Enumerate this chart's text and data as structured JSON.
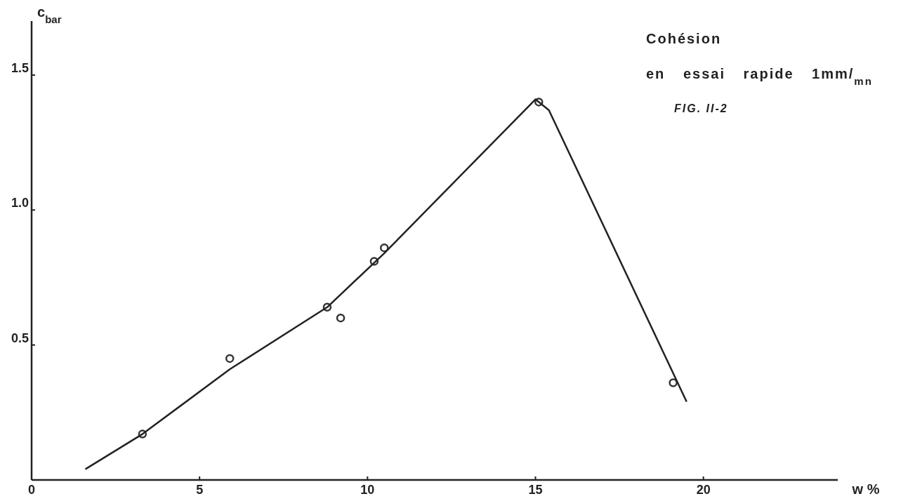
{
  "chart_data": {
    "type": "scatter",
    "title": "Cohésion",
    "subtitle": "en essai rapide 1mm/$_{mn}$",
    "annotations": [
      "FIG. II-2"
    ],
    "xlabel": "w %",
    "ylabel": "c$_{bar}$",
    "xlim": [
      0,
      24
    ],
    "xticks": [
      0,
      5,
      10,
      15,
      20
    ],
    "ylim": [
      0,
      1.7
    ],
    "yticks": [
      {
        "value": 0.5,
        "label": "0.5"
      },
      {
        "value": 1,
        "label": "1.0"
      },
      {
        "value": 1.5,
        "label": "1.5"
      }
    ],
    "grid": false,
    "series": [
      {
        "color": "#333333",
        "marker": "circle",
        "x": [
          3.3,
          5.9,
          8.8,
          9.2,
          10.2,
          10.5,
          15.1,
          19.1
        ],
        "values": [
          0.17,
          0.45,
          0.64,
          0.6,
          0.81,
          0.86,
          1.4,
          0.36
        ]
      },
      {
        "type": "line",
        "color": "#222222",
        "marker": "none",
        "line_style": "solid",
        "x": [
          1.6,
          3.3,
          5.9,
          8.8,
          10.5,
          15,
          15.4,
          19.5
        ],
        "values": [
          0.04,
          0.17,
          0.41,
          0.64,
          0.84,
          1.41,
          1.37,
          0.29
        ]
      }
    ]
  }
}
